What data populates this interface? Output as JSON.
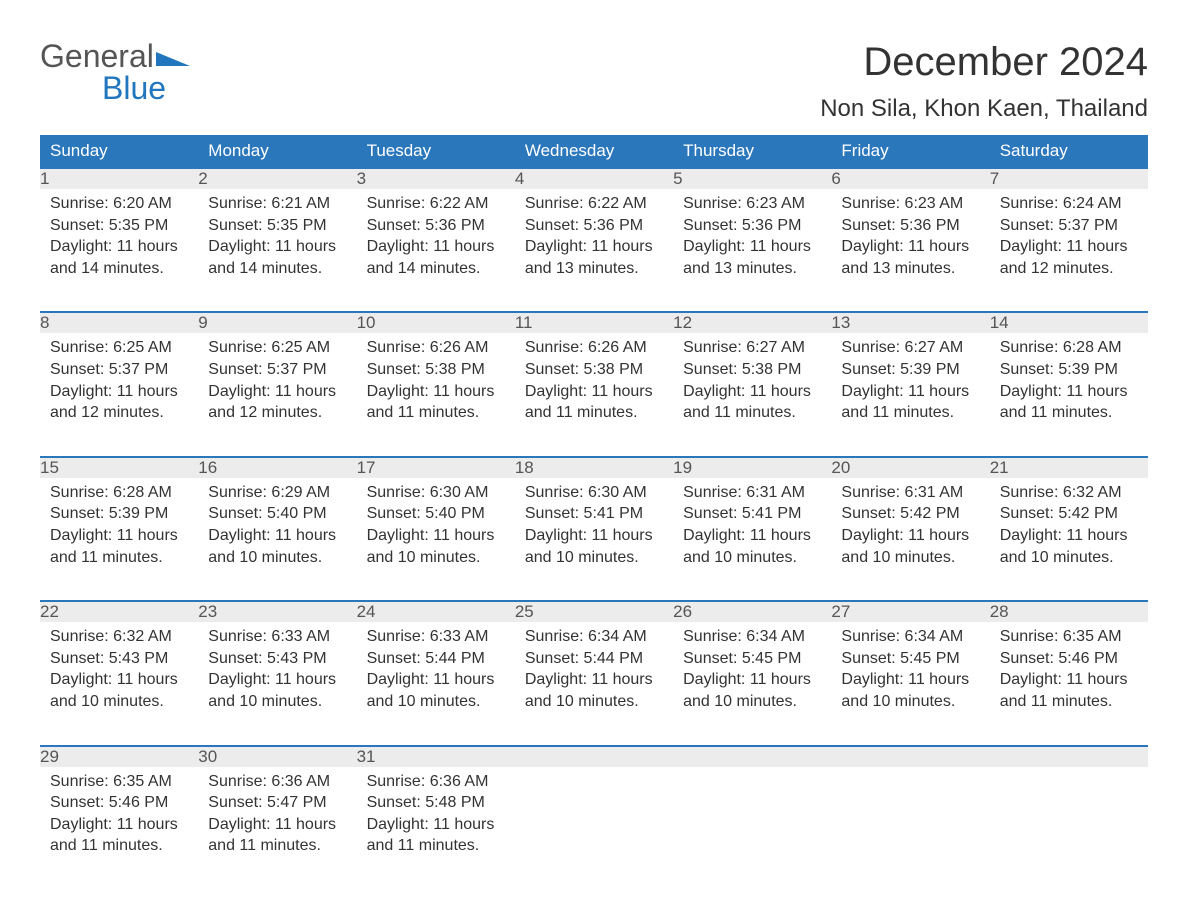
{
  "logo": {
    "word1": "General",
    "word2": "Blue"
  },
  "title": {
    "month": "December 2024",
    "location": "Non Sila, Khon Kaen, Thailand"
  },
  "colors": {
    "header_bg": "#2b77bc",
    "header_text": "#ffffff",
    "daynum_bg": "#ececec",
    "border_top": "#2b77bc",
    "body_bg": "#ffffff",
    "text": "#333333",
    "logo_gray": "#555555",
    "logo_blue": "#2176bd"
  },
  "typography": {
    "title_fontsize": 40,
    "location_fontsize": 24,
    "dayheader_fontsize": 17,
    "body_fontsize": 16
  },
  "calendar": {
    "type": "table",
    "columns": [
      "Sunday",
      "Monday",
      "Tuesday",
      "Wednesday",
      "Thursday",
      "Friday",
      "Saturday"
    ],
    "weeks": [
      [
        {
          "n": "1",
          "sunrise": "Sunrise: 6:20 AM",
          "sunset": "Sunset: 5:35 PM",
          "day1": "Daylight: 11 hours",
          "day2": "and 14 minutes."
        },
        {
          "n": "2",
          "sunrise": "Sunrise: 6:21 AM",
          "sunset": "Sunset: 5:35 PM",
          "day1": "Daylight: 11 hours",
          "day2": "and 14 minutes."
        },
        {
          "n": "3",
          "sunrise": "Sunrise: 6:22 AM",
          "sunset": "Sunset: 5:36 PM",
          "day1": "Daylight: 11 hours",
          "day2": "and 14 minutes."
        },
        {
          "n": "4",
          "sunrise": "Sunrise: 6:22 AM",
          "sunset": "Sunset: 5:36 PM",
          "day1": "Daylight: 11 hours",
          "day2": "and 13 minutes."
        },
        {
          "n": "5",
          "sunrise": "Sunrise: 6:23 AM",
          "sunset": "Sunset: 5:36 PM",
          "day1": "Daylight: 11 hours",
          "day2": "and 13 minutes."
        },
        {
          "n": "6",
          "sunrise": "Sunrise: 6:23 AM",
          "sunset": "Sunset: 5:36 PM",
          "day1": "Daylight: 11 hours",
          "day2": "and 13 minutes."
        },
        {
          "n": "7",
          "sunrise": "Sunrise: 6:24 AM",
          "sunset": "Sunset: 5:37 PM",
          "day1": "Daylight: 11 hours",
          "day2": "and 12 minutes."
        }
      ],
      [
        {
          "n": "8",
          "sunrise": "Sunrise: 6:25 AM",
          "sunset": "Sunset: 5:37 PM",
          "day1": "Daylight: 11 hours",
          "day2": "and 12 minutes."
        },
        {
          "n": "9",
          "sunrise": "Sunrise: 6:25 AM",
          "sunset": "Sunset: 5:37 PM",
          "day1": "Daylight: 11 hours",
          "day2": "and 12 minutes."
        },
        {
          "n": "10",
          "sunrise": "Sunrise: 6:26 AM",
          "sunset": "Sunset: 5:38 PM",
          "day1": "Daylight: 11 hours",
          "day2": "and 11 minutes."
        },
        {
          "n": "11",
          "sunrise": "Sunrise: 6:26 AM",
          "sunset": "Sunset: 5:38 PM",
          "day1": "Daylight: 11 hours",
          "day2": "and 11 minutes."
        },
        {
          "n": "12",
          "sunrise": "Sunrise: 6:27 AM",
          "sunset": "Sunset: 5:38 PM",
          "day1": "Daylight: 11 hours",
          "day2": "and 11 minutes."
        },
        {
          "n": "13",
          "sunrise": "Sunrise: 6:27 AM",
          "sunset": "Sunset: 5:39 PM",
          "day1": "Daylight: 11 hours",
          "day2": "and 11 minutes."
        },
        {
          "n": "14",
          "sunrise": "Sunrise: 6:28 AM",
          "sunset": "Sunset: 5:39 PM",
          "day1": "Daylight: 11 hours",
          "day2": "and 11 minutes."
        }
      ],
      [
        {
          "n": "15",
          "sunrise": "Sunrise: 6:28 AM",
          "sunset": "Sunset: 5:39 PM",
          "day1": "Daylight: 11 hours",
          "day2": "and 11 minutes."
        },
        {
          "n": "16",
          "sunrise": "Sunrise: 6:29 AM",
          "sunset": "Sunset: 5:40 PM",
          "day1": "Daylight: 11 hours",
          "day2": "and 10 minutes."
        },
        {
          "n": "17",
          "sunrise": "Sunrise: 6:30 AM",
          "sunset": "Sunset: 5:40 PM",
          "day1": "Daylight: 11 hours",
          "day2": "and 10 minutes."
        },
        {
          "n": "18",
          "sunrise": "Sunrise: 6:30 AM",
          "sunset": "Sunset: 5:41 PM",
          "day1": "Daylight: 11 hours",
          "day2": "and 10 minutes."
        },
        {
          "n": "19",
          "sunrise": "Sunrise: 6:31 AM",
          "sunset": "Sunset: 5:41 PM",
          "day1": "Daylight: 11 hours",
          "day2": "and 10 minutes."
        },
        {
          "n": "20",
          "sunrise": "Sunrise: 6:31 AM",
          "sunset": "Sunset: 5:42 PM",
          "day1": "Daylight: 11 hours",
          "day2": "and 10 minutes."
        },
        {
          "n": "21",
          "sunrise": "Sunrise: 6:32 AM",
          "sunset": "Sunset: 5:42 PM",
          "day1": "Daylight: 11 hours",
          "day2": "and 10 minutes."
        }
      ],
      [
        {
          "n": "22",
          "sunrise": "Sunrise: 6:32 AM",
          "sunset": "Sunset: 5:43 PM",
          "day1": "Daylight: 11 hours",
          "day2": "and 10 minutes."
        },
        {
          "n": "23",
          "sunrise": "Sunrise: 6:33 AM",
          "sunset": "Sunset: 5:43 PM",
          "day1": "Daylight: 11 hours",
          "day2": "and 10 minutes."
        },
        {
          "n": "24",
          "sunrise": "Sunrise: 6:33 AM",
          "sunset": "Sunset: 5:44 PM",
          "day1": "Daylight: 11 hours",
          "day2": "and 10 minutes."
        },
        {
          "n": "25",
          "sunrise": "Sunrise: 6:34 AM",
          "sunset": "Sunset: 5:44 PM",
          "day1": "Daylight: 11 hours",
          "day2": "and 10 minutes."
        },
        {
          "n": "26",
          "sunrise": "Sunrise: 6:34 AM",
          "sunset": "Sunset: 5:45 PM",
          "day1": "Daylight: 11 hours",
          "day2": "and 10 minutes."
        },
        {
          "n": "27",
          "sunrise": "Sunrise: 6:34 AM",
          "sunset": "Sunset: 5:45 PM",
          "day1": "Daylight: 11 hours",
          "day2": "and 10 minutes."
        },
        {
          "n": "28",
          "sunrise": "Sunrise: 6:35 AM",
          "sunset": "Sunset: 5:46 PM",
          "day1": "Daylight: 11 hours",
          "day2": "and 11 minutes."
        }
      ],
      [
        {
          "n": "29",
          "sunrise": "Sunrise: 6:35 AM",
          "sunset": "Sunset: 5:46 PM",
          "day1": "Daylight: 11 hours",
          "day2": "and 11 minutes."
        },
        {
          "n": "30",
          "sunrise": "Sunrise: 6:36 AM",
          "sunset": "Sunset: 5:47 PM",
          "day1": "Daylight: 11 hours",
          "day2": "and 11 minutes."
        },
        {
          "n": "31",
          "sunrise": "Sunrise: 6:36 AM",
          "sunset": "Sunset: 5:48 PM",
          "day1": "Daylight: 11 hours",
          "day2": "and 11 minutes."
        },
        null,
        null,
        null,
        null
      ]
    ]
  }
}
